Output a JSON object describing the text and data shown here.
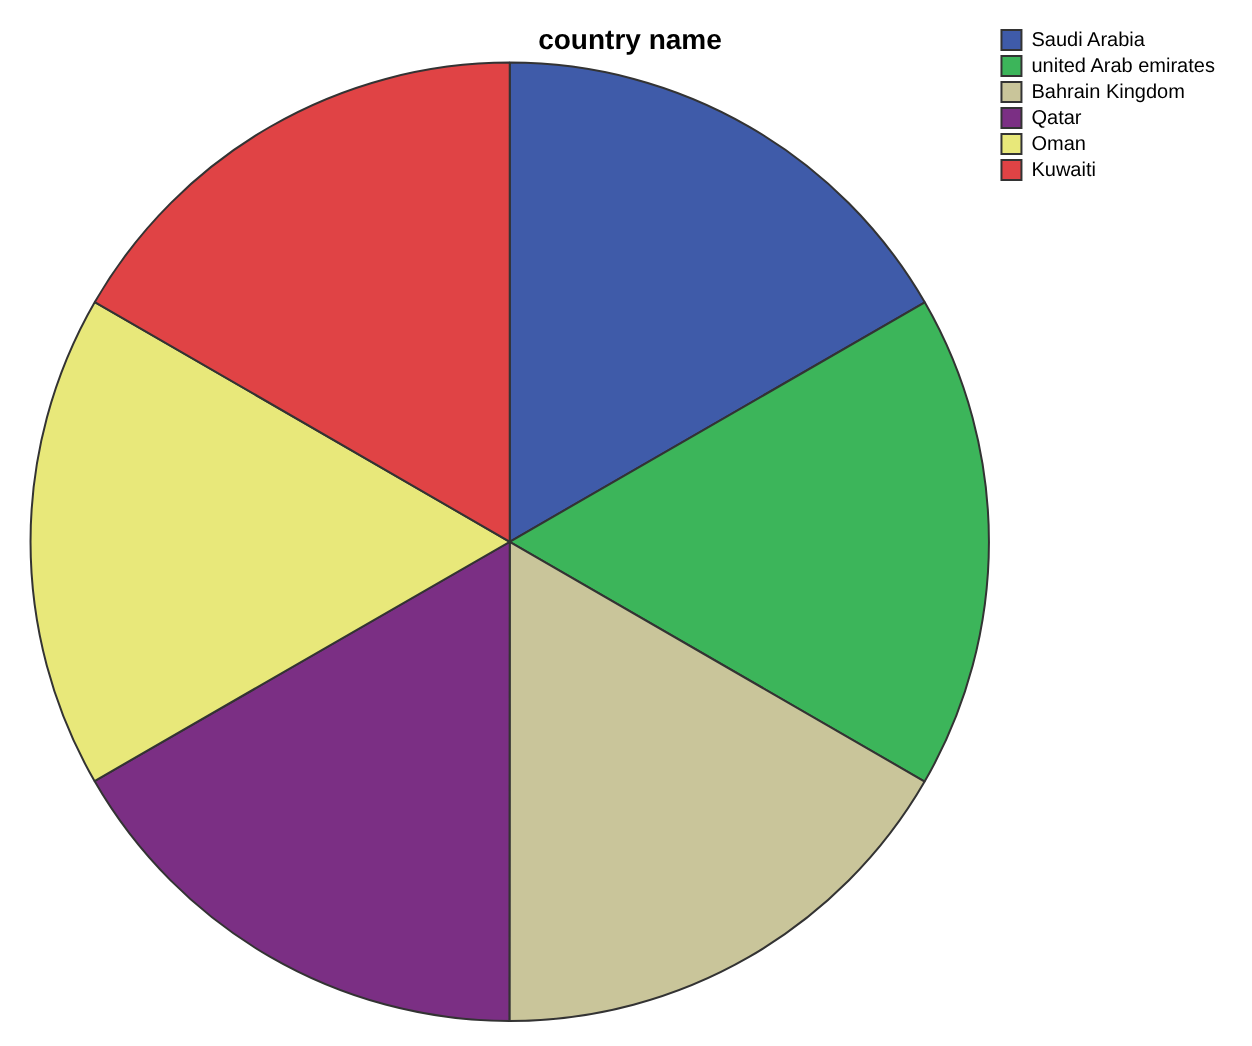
{
  "chart_data": {
    "type": "pie",
    "title": "country name",
    "categories": [
      "Saudi Arabia",
      "united Arab emirates",
      "Bahrain Kingdom",
      "Qatar",
      "Oman",
      "Kuwaiti"
    ],
    "values": [
      16.67,
      16.67,
      16.67,
      16.67,
      16.66,
      16.66
    ],
    "colors": [
      "#3f5ba9",
      "#3cb55a",
      "#c9c59a",
      "#7b2f84",
      "#e8e87a",
      "#e04345"
    ],
    "legend": "top right"
  }
}
